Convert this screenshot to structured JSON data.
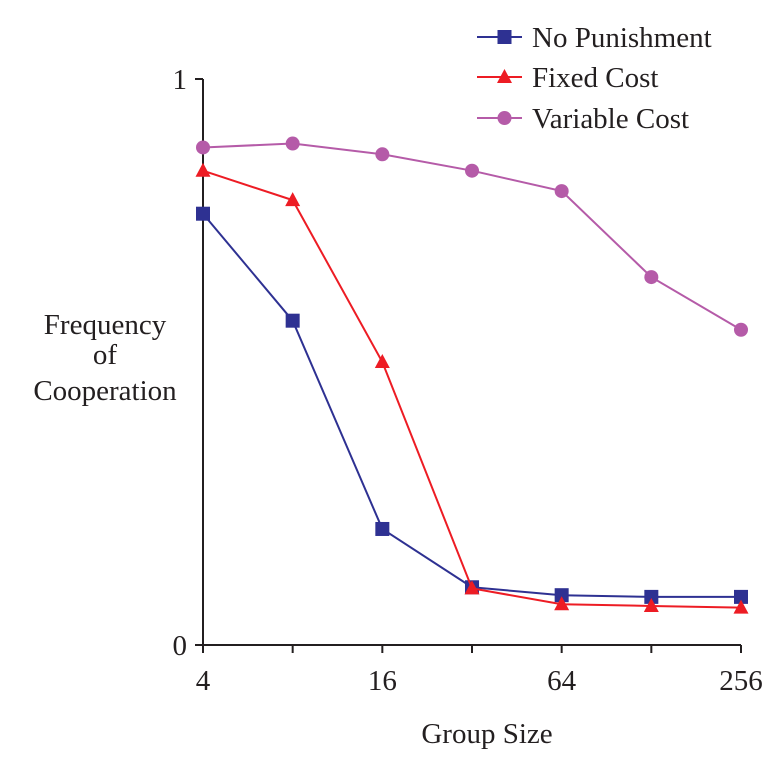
{
  "chart_data": {
    "type": "line",
    "x_scale": "log2",
    "x": [
      4,
      8,
      16,
      32,
      64,
      128,
      256
    ],
    "xlabel": "Group Size",
    "ylabel": [
      "Frequency",
      "of",
      "Cooperation"
    ],
    "ylim": [
      0,
      1
    ],
    "xticks": [
      {
        "value": 4,
        "label": "4"
      },
      {
        "value": 16,
        "label": "16"
      },
      {
        "value": 64,
        "label": "64"
      },
      {
        "value": 256,
        "label": "256"
      }
    ],
    "yticks": [
      {
        "value": 0,
        "label": "0"
      },
      {
        "value": 1,
        "label": "1"
      }
    ],
    "grid": false,
    "legend_position": "top-right",
    "series": [
      {
        "name": "No Punishment",
        "color": "#2e3192",
        "marker": "square",
        "values": [
          0.762,
          0.573,
          0.205,
          0.102,
          0.088,
          0.085,
          0.085
        ]
      },
      {
        "name": "Fixed Cost",
        "color": "#ed1c24",
        "marker": "triangle",
        "values": [
          0.838,
          0.786,
          0.5,
          0.1,
          0.072,
          0.069,
          0.066
        ]
      },
      {
        "name": "Variable Cost",
        "color": "#b55ba8",
        "marker": "circle",
        "values": [
          0.879,
          0.886,
          0.867,
          0.838,
          0.802,
          0.65,
          0.557
        ]
      }
    ]
  }
}
